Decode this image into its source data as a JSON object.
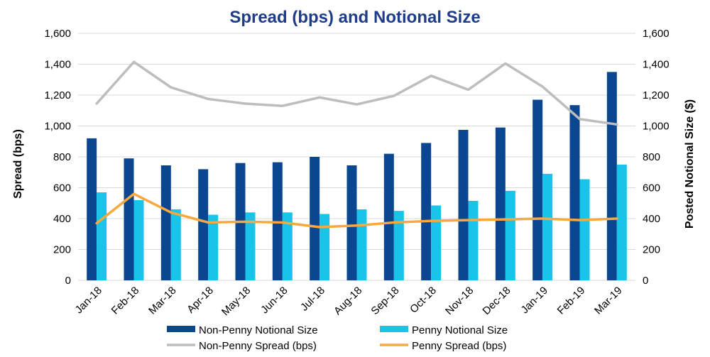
{
  "chart_data": {
    "type": "bar",
    "title": "Spread (bps) and Notional Size",
    "ylabel": "Spread (bps)",
    "y2label": "Posted Notional Size ($)",
    "ylim": [
      0,
      1600
    ],
    "y2lim": [
      0,
      1600
    ],
    "yticks": [
      "0",
      "200",
      "400",
      "600",
      "800",
      "1,000",
      "1,200",
      "1,400",
      "1,600"
    ],
    "y2ticks": [
      "0",
      "200",
      "400",
      "600",
      "800",
      "1,000",
      "1,200",
      "1,400",
      "1,600"
    ],
    "categories": [
      "Jan-18",
      "Feb-18",
      "Mar-18",
      "Apr-18",
      "May-18",
      "Jun-18",
      "Jul-18",
      "Aug-18",
      "Sep-18",
      "Oct-18",
      "Nov-18",
      "Dec-18",
      "Jan-19",
      "Feb-19",
      "Mar-19"
    ],
    "series": [
      {
        "name": "Non-Penny Notional Size",
        "kind": "bar",
        "axis": "right",
        "color": "#0b4691",
        "values": [
          920,
          790,
          745,
          720,
          760,
          765,
          800,
          745,
          820,
          890,
          975,
          990,
          1170,
          1135,
          1350
        ]
      },
      {
        "name": "Penny Notional Size",
        "kind": "bar",
        "axis": "right",
        "color": "#19c3ea",
        "values": [
          570,
          520,
          460,
          425,
          440,
          440,
          430,
          460,
          450,
          485,
          515,
          580,
          690,
          655,
          750
        ]
      },
      {
        "name": "Non-Penny Spread (bps)",
        "kind": "line",
        "axis": "left",
        "color": "#bdbdbd",
        "values": [
          1145,
          1415,
          1250,
          1175,
          1145,
          1130,
          1185,
          1140,
          1195,
          1325,
          1235,
          1405,
          1255,
          1045,
          1010
        ]
      },
      {
        "name": "Penny Spread (bps)",
        "kind": "line",
        "axis": "left",
        "color": "#f7a83e",
        "values": [
          370,
          560,
          440,
          375,
          380,
          375,
          345,
          355,
          375,
          385,
          390,
          395,
          400,
          390,
          400
        ]
      }
    ],
    "legend_position": "bottom",
    "grid": true
  }
}
